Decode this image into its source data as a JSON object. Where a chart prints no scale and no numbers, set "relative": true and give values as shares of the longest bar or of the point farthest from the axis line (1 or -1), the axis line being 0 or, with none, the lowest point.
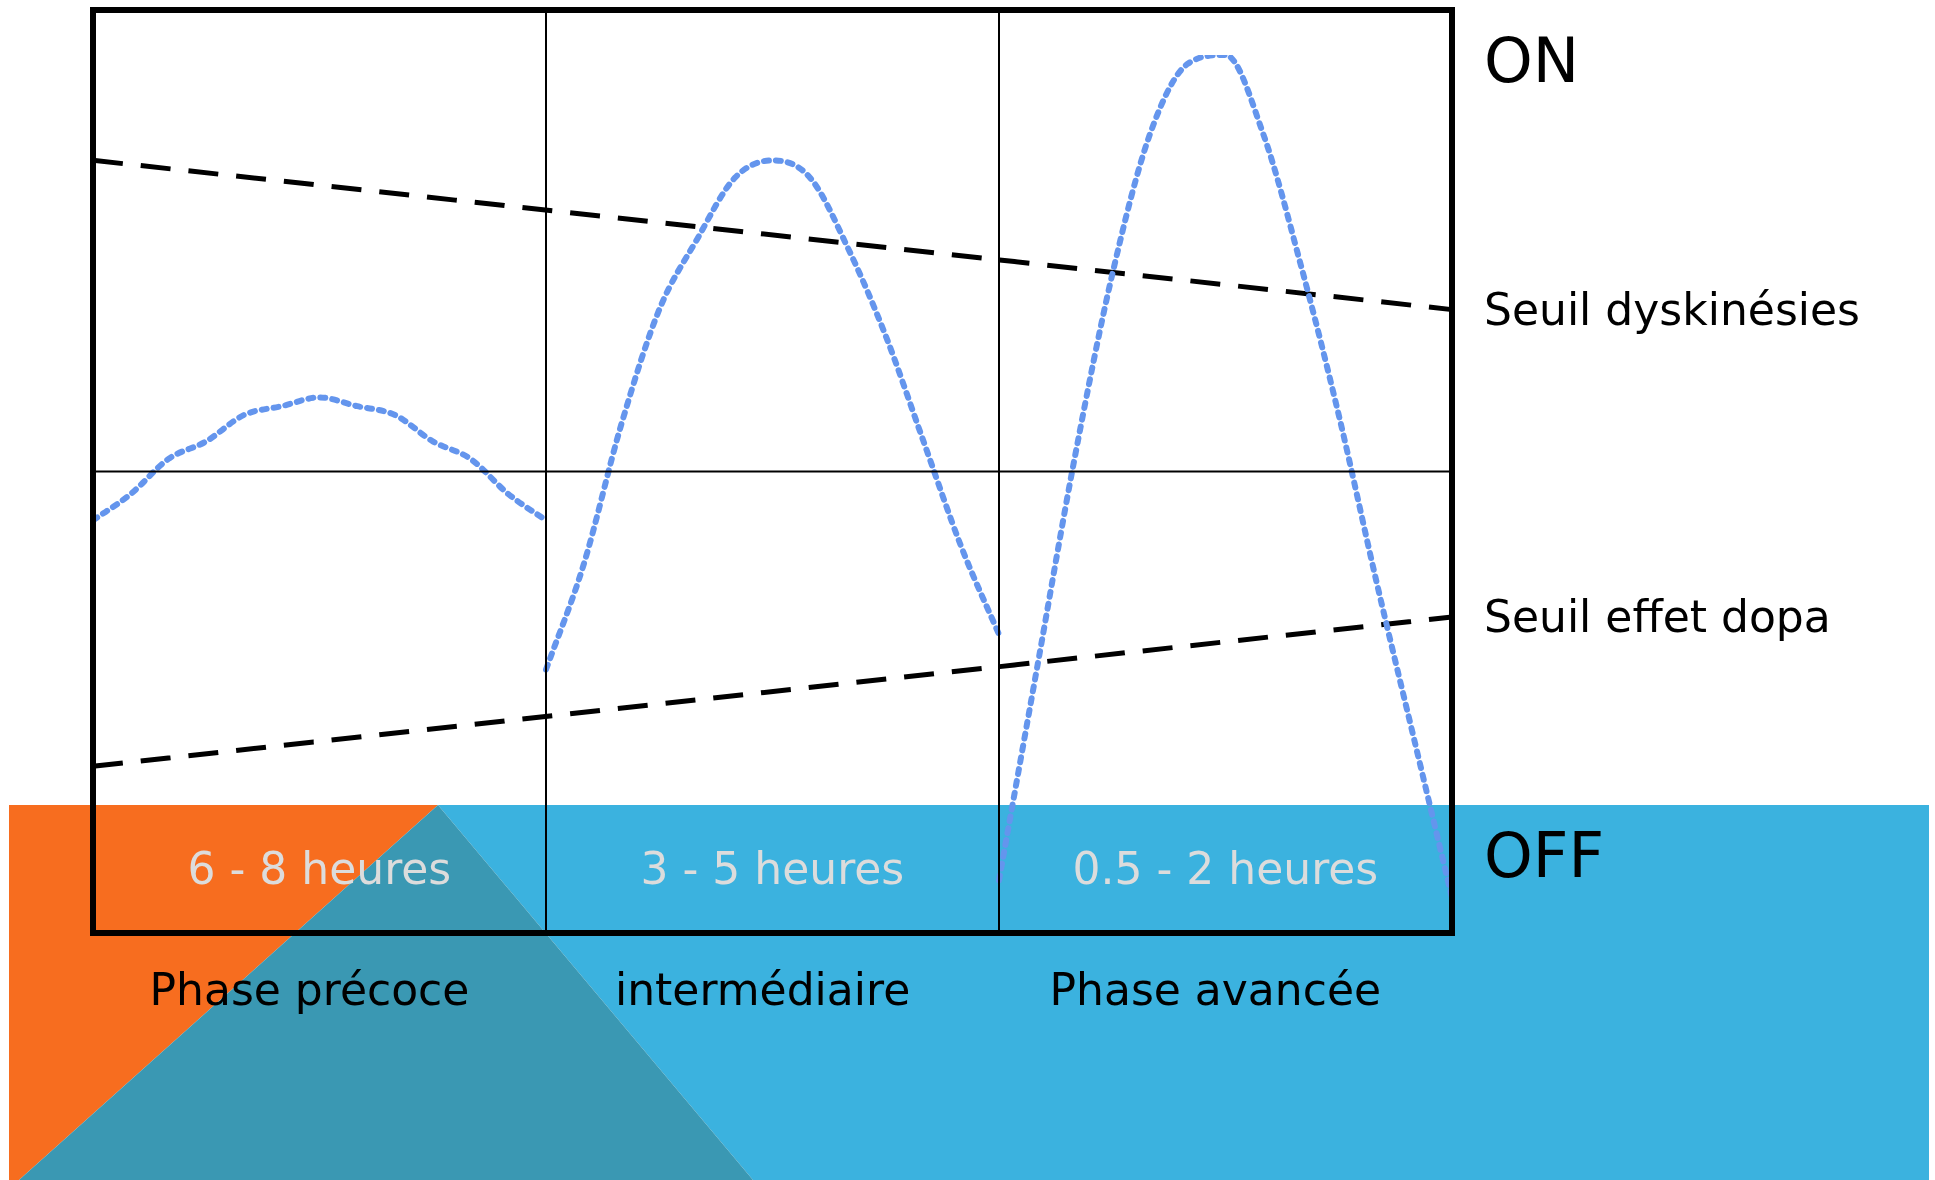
{
  "chart_data": {
    "type": "line",
    "relative": true,
    "marker": "none",
    "legend": false,
    "categories": [
      null,
      null,
      null,
      null,
      null,
      null,
      null,
      null,
      null,
      null,
      null,
      null,
      null,
      null,
      null,
      null,
      null,
      null,
      null,
      null,
      null,
      null,
      null,
      null,
      null,
      null,
      null,
      null,
      null,
      null,
      null,
      null,
      null,
      null,
      null,
      null,
      null
    ],
    "series": [
      {
        "color": "#6495ed",
        "line_style": "dotted",
        "values": [
          0.47,
          0.5,
          0.54,
          0.56,
          0.59,
          0.6,
          0.61,
          0.6,
          0.59,
          0.56,
          0.54,
          0.5,
          0.47,
          null,
          null,
          null,
          null,
          null,
          null,
          null,
          null,
          null,
          null,
          null,
          null,
          null,
          null,
          null,
          null,
          null,
          null,
          null,
          null,
          null,
          null,
          null,
          null
        ]
      },
      {
        "color": "#6495ed",
        "line_style": "dotted",
        "values": [
          null,
          null,
          null,
          null,
          null,
          null,
          null,
          null,
          null,
          null,
          null,
          null,
          0.3,
          0.42,
          0.58,
          0.71,
          0.79,
          0.86,
          0.88,
          0.86,
          0.78,
          0.68,
          0.56,
          0.44,
          0.34,
          null,
          null,
          null,
          null,
          null,
          null,
          null,
          null,
          null,
          null,
          null,
          null
        ]
      },
      {
        "color": "#6495ed",
        "line_style": "dotted",
        "values": [
          null,
          null,
          null,
          null,
          null,
          null,
          null,
          null,
          null,
          null,
          null,
          null,
          null,
          null,
          null,
          null,
          null,
          null,
          null,
          null,
          null,
          null,
          null,
          null,
          0.06,
          0.3,
          0.54,
          0.75,
          0.91,
          0.99,
          1,
          0.91,
          0.76,
          0.59,
          0.4,
          0.22,
          0.04
        ]
      },
      {
        "name": "Seuil dyskinésies",
        "color": "#000000",
        "line_style": "dashed",
        "values": [
          0.88,
          null,
          null,
          null,
          null,
          null,
          null,
          null,
          null,
          null,
          null,
          null,
          null,
          null,
          null,
          null,
          null,
          null,
          null,
          null,
          null,
          null,
          null,
          null,
          null,
          null,
          null,
          null,
          null,
          null,
          null,
          null,
          null,
          null,
          null,
          null,
          0.71
        ]
      },
      {
        "name": "Seuil effet dopa",
        "color": "#000000",
        "line_style": "dashed",
        "values": [
          0.19,
          null,
          null,
          null,
          null,
          null,
          null,
          null,
          null,
          null,
          null,
          null,
          null,
          null,
          null,
          null,
          null,
          null,
          null,
          null,
          null,
          null,
          null,
          null,
          null,
          null,
          null,
          null,
          null,
          null,
          null,
          null,
          null,
          null,
          null,
          null,
          0.36
        ]
      }
    ],
    "annotations": [
      "ON",
      "OFF",
      "6 - 8 heures",
      "3 - 5 heures",
      "0.5 - 2 heures",
      "Phase précoce",
      "intermédiaire",
      "Phase avancée"
    ]
  }
}
